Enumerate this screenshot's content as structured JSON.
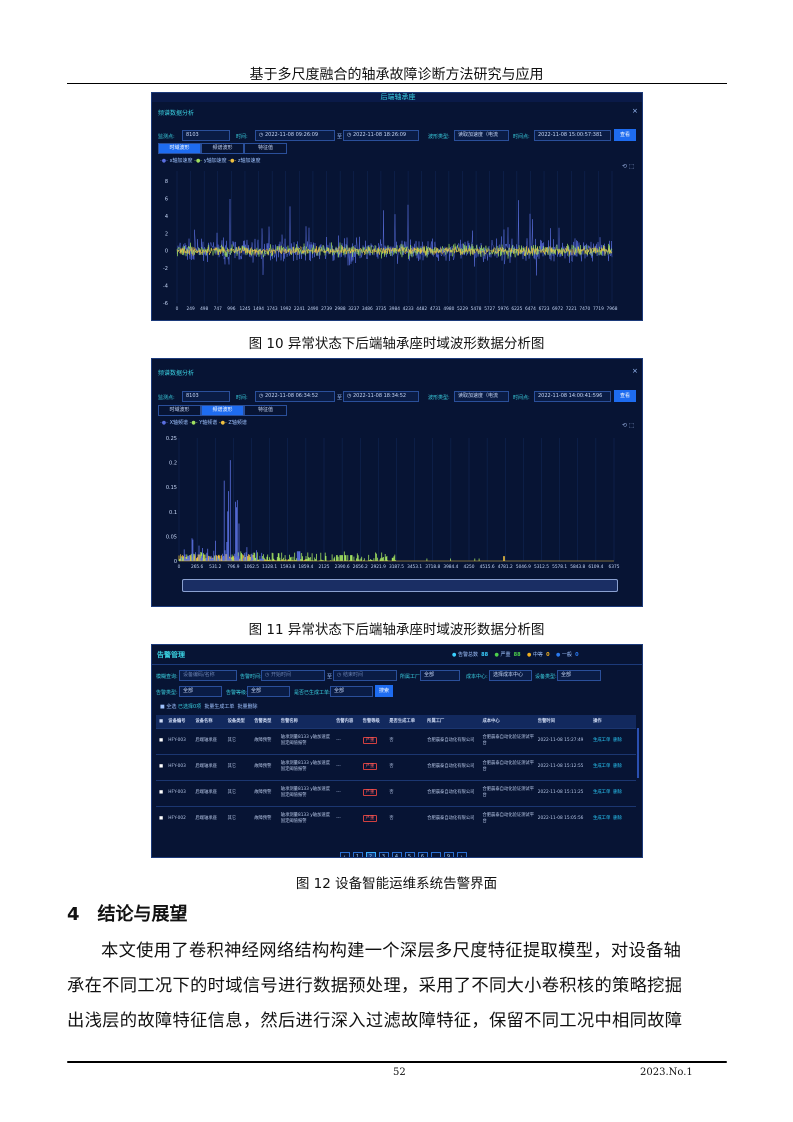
{
  "header": {
    "title": "基于多尺度融合的轴承故障诊断方法研究与应用"
  },
  "figures": [
    {
      "caption": "图 10  异常状态下后端轴承座时域波形数据分析图",
      "banner": "后端轴承座",
      "panel_title": "频谱数据分析",
      "close": "×",
      "filters": {
        "point_label": "监测点:",
        "point_value": "8103",
        "time_label": "时间:",
        "start": "◷ 2022-11-08 09:26:09",
        "to": "至",
        "end": "◷ 2022-11-08 18:26:09",
        "wave_label": "波形类型:",
        "wave_value": "读取加速度（电流",
        "tp_label": "时间点:",
        "tp_value": "2022-11-08 15:00:57:381",
        "query": "查看"
      },
      "tabs": [
        "时域波形",
        "频谱波形",
        "特征值"
      ],
      "active_tab": 0,
      "legend": [
        "x轴加速度",
        "y轴加速度",
        "z轴加速度"
      ]
    },
    {
      "caption": "图 11  异常状态下后端轴承座时域波形数据分析图",
      "panel_title": "频谱数据分析",
      "close": "×",
      "filters": {
        "point_label": "监测点:",
        "point_value": "8103",
        "time_label": "时间:",
        "start": "◷ 2022-11-08 06:34:52",
        "to": "至",
        "end": "◷ 2022-11-08 18:34:52",
        "wave_label": "波形类型:",
        "wave_value": "读取加速度（电流",
        "tp_label": "时间点:",
        "tp_value": "2022-11-08 14:00:41:596",
        "query": "查看"
      },
      "tabs": [
        "时域波形",
        "频谱波形",
        "特征值"
      ],
      "active_tab": 1,
      "legend": [
        "X轴频谱",
        "Y轴频谱",
        "Z轴频谱"
      ]
    },
    {
      "caption": "图 12  设备智能运维系统告警界面",
      "title": "告警管理",
      "stats": [
        {
          "label": "告警总数",
          "value": "88",
          "color": "#3ad0ff"
        },
        {
          "label": "严重",
          "value": "88",
          "color": "#4cd04c"
        },
        {
          "label": "中等",
          "value": "0",
          "color": "#f0b020"
        },
        {
          "label": "一般",
          "value": "0",
          "color": "#2a7af0"
        }
      ],
      "filters": [
        {
          "label": "模糊查询:",
          "value": "设备编码/名称"
        },
        {
          "label": "告警时间:",
          "value": "◷ 开始时间"
        },
        {
          "label": "至",
          "value": "◷ 结束时间"
        },
        {
          "label": "所属工厂:",
          "value": "全部"
        },
        {
          "label": "成本中心:",
          "value": "选择成本中心"
        },
        {
          "label": "设备类型:",
          "value": "全部"
        },
        {
          "label": "告警类型:",
          "value": "全部"
        },
        {
          "label": "告警等级:",
          "value": "全部"
        },
        {
          "label": "是否已生成工单:",
          "value": "全部"
        }
      ],
      "search": "搜索",
      "actions": [
        "全选",
        "已选择0项",
        "批量生成工单",
        "批量删除"
      ],
      "columns": [
        "设备编号",
        "设备名称",
        "设备类型",
        "告警类型",
        "告警名称",
        "告警内容",
        "告警等级",
        "是否生成工单",
        "所属工厂",
        "成本中心",
        "告警时间",
        "操作"
      ],
      "rows": [
        [
          "HFY-003",
          "后端轴承座",
          "其它",
          "故障预警",
          "轴承测量8133 y轴加速度固定阈值报警",
          "---",
          "严重",
          "否",
          "合肥晨泰自动化有限公司",
          "合肥晨泰自动化验证测试平台",
          "2022-11-08 15:27:49"
        ],
        [
          "HFY-003",
          "后端轴承座",
          "其它",
          "故障预警",
          "轴承测量8133 y轴加速度固定阈值报警",
          "---",
          "严重",
          "否",
          "合肥晨泰自动化有限公司",
          "合肥晨泰自动化验证测试平台",
          "2022-11-08 15:12:55"
        ],
        [
          "HFY-003",
          "后端轴承座",
          "其它",
          "故障预警",
          "轴承测量8133 y轴加速度固定阈值报警",
          "---",
          "严重",
          "否",
          "合肥晨泰自动化有限公司",
          "合肥晨泰自动化验证测试平台",
          "2022-11-08 15:11:25"
        ],
        [
          "HFY-002",
          "后端轴承座",
          "其它",
          "故障预警",
          "轴承测量8133 y轴加速度固定阈值报警",
          "---",
          "严重",
          "否",
          "合肥晨泰自动化有限公司",
          "合肥晨泰自动化验证测试平台",
          "2022-11-08 15:05:56"
        ]
      ],
      "row_actions": [
        "生成工单",
        "删除"
      ],
      "pagination": [
        "‹",
        "1",
        "2",
        "3",
        "4",
        "5",
        "6",
        "…",
        "9",
        "›"
      ],
      "current_page": "2"
    }
  ],
  "chart_data": [
    {
      "type": "line",
      "yticks": [
        "8",
        "6",
        "4",
        "2",
        "0",
        "-2",
        "-4",
        "-6"
      ],
      "ylim": [
        -6,
        8
      ],
      "xticks": [
        "0",
        "249",
        "498",
        "747",
        "996",
        "1245",
        "1494",
        "1743",
        "1992",
        "2241",
        "2490",
        "2739",
        "2988",
        "3237",
        "3486",
        "3735",
        "3984",
        "4233",
        "4482",
        "4731",
        "4980",
        "5229",
        "5478",
        "5727",
        "5976",
        "6225",
        "6474",
        "6723",
        "6972",
        "7221",
        "7470",
        "7719",
        "7968"
      ],
      "series": [
        {
          "name": "x轴加速度",
          "color": "#5a6fe0"
        },
        {
          "name": "y轴加速度",
          "color": "#a0e060"
        },
        {
          "name": "z轴加速度",
          "color": "#f0c040"
        }
      ]
    },
    {
      "type": "bar",
      "yticks": [
        "0.25",
        "0.2",
        "0.15",
        "0.1",
        "0.05",
        "0"
      ],
      "ylim": [
        0,
        0.25
      ],
      "xticks": [
        "0",
        "265.6",
        "531.2",
        "796.9",
        "1062.5",
        "1328.1",
        "1593.8",
        "1859.4",
        "2125",
        "2390.6",
        "2656.2",
        "2921.9",
        "3187.5",
        "3453.1",
        "3718.8",
        "3984.4",
        "4250",
        "4515.6",
        "4781.2",
        "5046.9",
        "5312.5",
        "5578.1",
        "5843.8",
        "6109.4",
        "6375"
      ],
      "series": [
        {
          "name": "X轴频谱",
          "color": "#5a6fe0"
        },
        {
          "name": "Y轴频谱",
          "color": "#a0e060"
        },
        {
          "name": "Z轴频谱",
          "color": "#f0c040"
        }
      ]
    }
  ],
  "section": {
    "heading": "4　结论与展望",
    "lines": [
      "本文使用了卷积神经网络结构构建一个深层多尺度特征提取模型，对设备轴",
      "承在不同工况下的时域信号进行数据预处理，采用了不同大小卷积核的策略挖掘",
      "出浅层的故障特征信息，然后进行深入过滤故障特征，保留不同工况中相同故障"
    ]
  },
  "footer": {
    "page": "52",
    "issue": "2023.No.1"
  }
}
